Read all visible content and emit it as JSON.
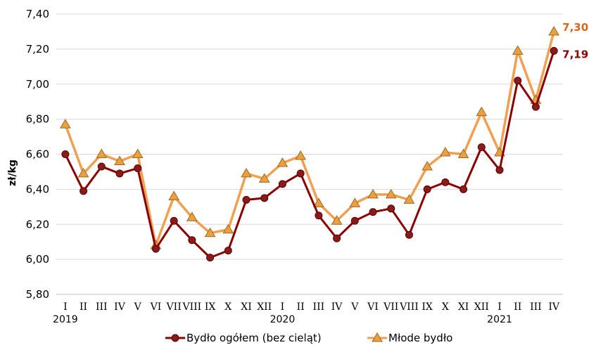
{
  "chart_data": {
    "type": "line",
    "ylabel": "zł/kg",
    "ylim": [
      5.8,
      7.4
    ],
    "yticks": [
      "5,80",
      "6,00",
      "6,20",
      "6,40",
      "6,60",
      "6,80",
      "7,00",
      "7,20",
      "7,40"
    ],
    "ytick_values": [
      5.8,
      6.0,
      6.2,
      6.4,
      6.6,
      6.8,
      7.0,
      7.2,
      7.4
    ],
    "categories": [
      "I",
      "II",
      "III",
      "IV",
      "V",
      "VI",
      "VII",
      "VIII",
      "IX",
      "X",
      "XI",
      "XII",
      "I",
      "II",
      "III",
      "IV",
      "V",
      "VI",
      "VII",
      "VIII",
      "IX",
      "X",
      "XI",
      "XII",
      "I",
      "II",
      "III",
      "IV"
    ],
    "year_labels": [
      {
        "index": 0,
        "label": "2019"
      },
      {
        "index": 12,
        "label": "2020"
      },
      {
        "index": 24,
        "label": "2021"
      }
    ],
    "series": [
      {
        "name": "Bydło ogółem (bez cieląt)",
        "color": "#8B0000",
        "marker": "circle",
        "values": [
          6.6,
          6.39,
          6.53,
          6.49,
          6.52,
          6.06,
          6.22,
          6.11,
          6.01,
          6.05,
          6.34,
          6.35,
          6.43,
          6.49,
          6.25,
          6.12,
          6.22,
          6.27,
          6.29,
          6.14,
          6.4,
          6.44,
          6.4,
          6.64,
          6.51,
          7.02,
          6.87,
          7.19
        ],
        "end_label": "7,19"
      },
      {
        "name": "Młode bydło",
        "color": "#F0A050",
        "marker": "triangle",
        "values": [
          6.77,
          6.49,
          6.6,
          6.56,
          6.6,
          6.08,
          6.36,
          6.24,
          6.15,
          6.17,
          6.49,
          6.46,
          6.55,
          6.59,
          6.32,
          6.22,
          6.32,
          6.37,
          6.37,
          6.34,
          6.53,
          6.61,
          6.6,
          6.84,
          6.61,
          7.19,
          6.91,
          7.3
        ],
        "end_label": "7,30"
      }
    ],
    "grid": "horizontal",
    "legend_position": "bottom"
  }
}
